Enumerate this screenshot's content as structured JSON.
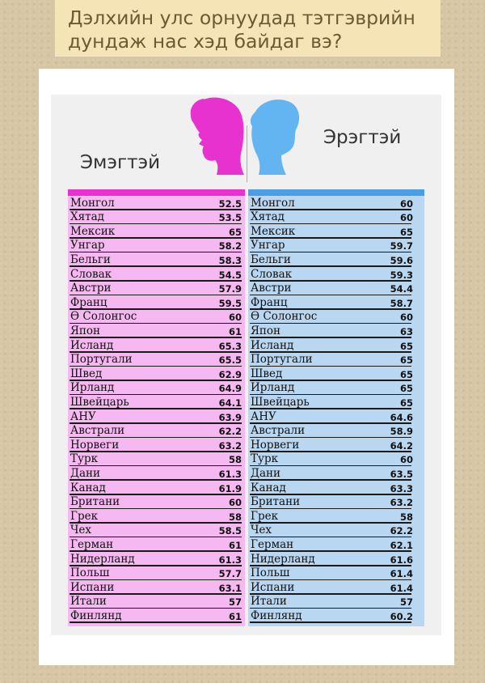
{
  "title": {
    "line1": "Дэлхийн улс орнуудад тэтгэврийн",
    "line2": "дундаж нас хэд байдаг вэ?"
  },
  "legend": {
    "female_label": "Эмэгтэй",
    "male_label": "Эрэгтэй"
  },
  "colors": {
    "female": "#e832d0",
    "female_bg": "#f6b8f0",
    "male": "#4b9ee6",
    "male_bg": "#bad7f1"
  },
  "chart_data": {
    "type": "table",
    "title": "Дэлхийн улс орнуудад тэтгэврийн дундаж нас хэд байдаг вэ?",
    "columns": [
      "Эмэгтэй",
      "Эрэгтэй"
    ],
    "female": {
      "countries": [
        "Монгол",
        "Хятад",
        "Мексик",
        "Унгар",
        "Бельги",
        "Словак",
        "Австри",
        "Франц",
        "Ө Солонгос",
        "Япон",
        "Исланд",
        "Португали",
        "Швед",
        "Ирланд",
        "Швейцарь",
        "АНУ",
        "Австрали",
        "Норвеги",
        "Турк",
        "Дани",
        " Канад",
        "Британи",
        "Грек",
        "Чех",
        "Герман",
        "Нидерланд",
        "Польш",
        "Испани",
        "Итали",
        "Финлянд"
      ],
      "values": [
        "52.5",
        "53.5",
        "65",
        "58.2",
        "58.3",
        "54.5",
        "57.9",
        "59.5",
        "60",
        "61",
        "65.3",
        "65.5",
        "62.9",
        "64.9",
        "64.1",
        "63.9",
        "62.2",
        "63.2",
        "58",
        "61.3",
        "61.9",
        "60",
        "58",
        "58.5",
        "61",
        "61.3",
        "57.7",
        "63.1",
        "57",
        "61"
      ]
    },
    "male": {
      "countries": [
        "Монгол",
        "Хятад",
        "Мексик",
        "Унгар",
        "Бельги",
        "Словак",
        "Австри",
        "Франц",
        "Ө Солонгос",
        "Япон",
        "Исланд",
        "Португали",
        "Швед",
        "Ирланд",
        "Швейцарь",
        "АНУ",
        "Австрали",
        "Норвеги",
        "Турк",
        "Дани",
        " Канад",
        "Британи",
        "Грек",
        "Чех",
        "Герман",
        "Нидерланд",
        "Польш",
        "Испани",
        "Итали",
        "Финлянд"
      ],
      "values": [
        "60",
        "60",
        "65",
        "59.7",
        "59.6",
        "59.3",
        "54.4",
        "58.7",
        "60",
        "63",
        "65",
        "65",
        "65",
        "65",
        "65",
        "64.6",
        "58.9",
        "64.2",
        "60",
        "63.5",
        "63.3",
        "63.2",
        "58",
        "62.2",
        "62.1",
        "61.6",
        "61.4",
        "61.4",
        "57",
        "60.2"
      ]
    }
  }
}
